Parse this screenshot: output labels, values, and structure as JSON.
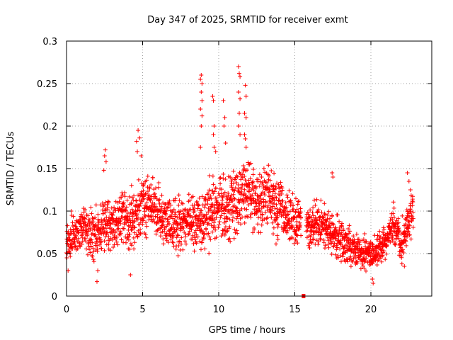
{
  "chart_data": {
    "type": "scatter",
    "title": "Day 347 of 2025, SRMTID for receiver exmt",
    "xlabel": "GPS time / hours",
    "ylabel": "SRMTID / TECUs",
    "xlim": [
      0,
      24
    ],
    "ylim": [
      0,
      0.3
    ],
    "xticks": [
      0,
      5,
      10,
      15,
      20
    ],
    "xtick_labels": [
      "0",
      "5",
      "10",
      "15",
      "20"
    ],
    "yticks": [
      0,
      0.05,
      0.1,
      0.15,
      0.2,
      0.25,
      0.3
    ],
    "ytick_labels": [
      "0",
      "0.05",
      "0.1",
      "0.15",
      "0.2",
      "0.25",
      "0.3"
    ],
    "grid": true,
    "marker": "+",
    "colors": {
      "series": "#ff0000",
      "grid": "#a0a0a0",
      "axes": "#000000"
    },
    "series": [
      {
        "name": "SRMTID",
        "trend": {
          "x": [
            0,
            0.5,
            1,
            1.5,
            2,
            2.5,
            3,
            3.5,
            4,
            4.5,
            5,
            5.5,
            6,
            6.5,
            7,
            7.5,
            8,
            8.5,
            9,
            9.5,
            10,
            10.5,
            11,
            11.5,
            12,
            12.5,
            13,
            13.5,
            14,
            14.5,
            15,
            15.5,
            16,
            16.5,
            17,
            17.5,
            18,
            18.5,
            19,
            19.5,
            20,
            20.5,
            21,
            21.5,
            22,
            22.5,
            22.8
          ],
          "y": [
            0.06,
            0.07,
            0.085,
            0.075,
            0.07,
            0.09,
            0.08,
            0.09,
            0.095,
            0.09,
            0.11,
            0.105,
            0.1,
            0.085,
            0.08,
            0.085,
            0.09,
            0.085,
            0.09,
            0.1,
            0.105,
            0.1,
            0.11,
            0.12,
            0.12,
            0.11,
            0.115,
            0.11,
            0.1,
            0.095,
            0.09,
            0.085,
            0.08,
            0.085,
            0.08,
            0.075,
            0.065,
            0.06,
            0.055,
            0.05,
            0.05,
            0.055,
            0.065,
            0.085,
            0.06,
            0.09,
            0.1
          ],
          "spread": [
            0.02,
            0.025,
            0.025,
            0.03,
            0.03,
            0.035,
            0.03,
            0.03,
            0.035,
            0.035,
            0.04,
            0.035,
            0.035,
            0.03,
            0.03,
            0.03,
            0.03,
            0.035,
            0.04,
            0.04,
            0.04,
            0.04,
            0.04,
            0.045,
            0.045,
            0.04,
            0.04,
            0.035,
            0.035,
            0.03,
            0.03,
            0.03,
            0.03,
            0.03,
            0.03,
            0.025,
            0.025,
            0.02,
            0.02,
            0.02,
            0.02,
            0.02,
            0.02,
            0.025,
            0.025,
            0.025,
            0.025
          ]
        },
        "points": [
          [
            0.1,
            0.03
          ],
          [
            0.3,
            0.1
          ],
          [
            0.35,
            0.095
          ],
          [
            2.0,
            0.017
          ],
          [
            2.05,
            0.03
          ],
          [
            2.5,
            0.165
          ],
          [
            2.55,
            0.172
          ],
          [
            2.6,
            0.158
          ],
          [
            2.45,
            0.148
          ],
          [
            4.2,
            0.025
          ],
          [
            4.6,
            0.182
          ],
          [
            4.7,
            0.195
          ],
          [
            4.8,
            0.186
          ],
          [
            4.65,
            0.17
          ],
          [
            4.9,
            0.165
          ],
          [
            8.8,
            0.255
          ],
          [
            8.85,
            0.26
          ],
          [
            8.9,
            0.25
          ],
          [
            8.85,
            0.24
          ],
          [
            8.9,
            0.23
          ],
          [
            8.8,
            0.22
          ],
          [
            8.9,
            0.212
          ],
          [
            8.85,
            0.2
          ],
          [
            8.8,
            0.175
          ],
          [
            9.6,
            0.235
          ],
          [
            9.65,
            0.23
          ],
          [
            9.7,
            0.2
          ],
          [
            9.65,
            0.19
          ],
          [
            9.7,
            0.175
          ],
          [
            9.8,
            0.17
          ],
          [
            10.3,
            0.23
          ],
          [
            10.4,
            0.21
          ],
          [
            10.45,
            0.18
          ],
          [
            10.35,
            0.2
          ],
          [
            11.3,
            0.27
          ],
          [
            11.35,
            0.262
          ],
          [
            11.4,
            0.258
          ],
          [
            11.3,
            0.24
          ],
          [
            11.4,
            0.232
          ],
          [
            11.35,
            0.215
          ],
          [
            11.3,
            0.2
          ],
          [
            11.4,
            0.19
          ],
          [
            11.75,
            0.248
          ],
          [
            11.8,
            0.235
          ],
          [
            11.7,
            0.215
          ],
          [
            11.8,
            0.21
          ],
          [
            11.7,
            0.19
          ],
          [
            11.75,
            0.185
          ],
          [
            11.8,
            0.175
          ],
          [
            15.55,
            0.0
          ],
          [
            15.58,
            0.0
          ],
          [
            15.6,
            0.0
          ],
          [
            17.45,
            0.145
          ],
          [
            17.5,
            0.14
          ],
          [
            20.1,
            0.02
          ],
          [
            20.15,
            0.015
          ],
          [
            22.2,
            0.035
          ],
          [
            22.4,
            0.145
          ],
          [
            22.5,
            0.135
          ],
          [
            22.6,
            0.125
          ]
        ]
      }
    ]
  }
}
